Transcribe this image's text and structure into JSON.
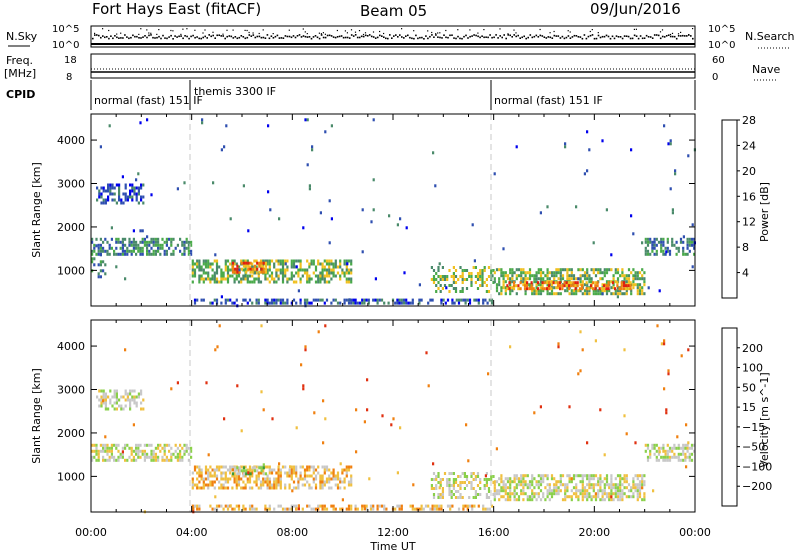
{
  "header": {
    "station": "Fort Hays East (fitACF)",
    "beam": "Beam 05",
    "date": "09/Jun/2016"
  },
  "strips": {
    "nsky_label": "N.Sky",
    "nsearch_label": "N.Search",
    "nsky_ticks": [
      "10^5",
      "10^0"
    ],
    "nsearch_ticks": [
      "10^5",
      "10^0"
    ],
    "freq_label_1": "Freq.",
    "freq_label_2": "[MHz]",
    "freq_ticks": [
      "18",
      "8"
    ],
    "nave_label": "Nave",
    "nave_ticks": [
      "60",
      "0"
    ],
    "cpid_label": "CPID",
    "cpid_segments": [
      {
        "label": "normal (fast) 151 IF",
        "start_h": 0,
        "end_h": 4
      },
      {
        "label": "themis 3300 IF",
        "start_h": 4,
        "end_h": 16
      },
      {
        "label": "normal (fast) 151 IF",
        "start_h": 16,
        "end_h": 24
      }
    ]
  },
  "chart_data": [
    {
      "type": "heatmap",
      "name": "power",
      "ylabel": "Slant Range [km]",
      "xlabel": "Time UT",
      "xlim": [
        0,
        24
      ],
      "ylim": [
        180,
        4600
      ],
      "yticks": [
        1000,
        2000,
        3000,
        4000
      ],
      "xtick_labels": [
        "00:00",
        "04:00",
        "08:00",
        "12:00",
        "16:00",
        "20:00",
        "00:00"
      ],
      "colorbar": {
        "label": "Power [dB]",
        "ticks": [
          "4",
          "8",
          "12",
          "16",
          "20",
          "24",
          "28"
        ],
        "colors": [
          "#0000ee",
          "#2f4fb0",
          "#4a8a6a",
          "#4aaa4a",
          "#f0c020",
          "#f08010",
          "#e02010"
        ]
      },
      "regions": [
        {
          "t0": 0.2,
          "t1": 2.1,
          "r0": 2500,
          "r1": 3000,
          "level": 1,
          "density": 0.5
        },
        {
          "t0": 0.0,
          "t1": 4.0,
          "r0": 1350,
          "r1": 1750,
          "level": 2,
          "density": 0.6
        },
        {
          "t0": 0.0,
          "t1": 0.6,
          "r0": 800,
          "r1": 1300,
          "level": 2,
          "density": 0.3
        },
        {
          "t0": 4.0,
          "t1": 10.4,
          "r0": 700,
          "r1": 1250,
          "level": 3,
          "density": 0.6
        },
        {
          "t0": 5.6,
          "t1": 7.0,
          "r0": 900,
          "r1": 1200,
          "level": 5,
          "density": 0.7
        },
        {
          "t0": 4.0,
          "t1": 16.0,
          "r0": 200,
          "r1": 350,
          "level": 1,
          "density": 0.55
        },
        {
          "t0": 13.5,
          "t1": 16.0,
          "r0": 450,
          "r1": 1100,
          "level": 3,
          "density": 0.4
        },
        {
          "t0": 16.0,
          "t1": 22.0,
          "r0": 450,
          "r1": 1050,
          "level": 3,
          "density": 0.6
        },
        {
          "t0": 16.5,
          "t1": 21.5,
          "r0": 520,
          "r1": 750,
          "level": 5,
          "density": 0.55
        },
        {
          "t0": 22.0,
          "t1": 24.0,
          "r0": 1350,
          "r1": 1750,
          "level": 2,
          "density": 0.6
        },
        {
          "t0": 0.0,
          "t1": 24.0,
          "r0": 180,
          "r1": 4500,
          "level": 1,
          "density": 0.006
        }
      ]
    },
    {
      "type": "heatmap",
      "name": "velocity",
      "ylabel": "Slant Range [km]",
      "xlabel": "Time UT",
      "xlim": [
        0,
        24
      ],
      "ylim": [
        180,
        4600
      ],
      "yticks": [
        1000,
        2000,
        3000,
        4000
      ],
      "xtick_labels": [
        "00:00",
        "04:00",
        "08:00",
        "12:00",
        "16:00",
        "20:00",
        "00:00"
      ],
      "colorbar": {
        "label": "Velocity [m s^-1]",
        "ticks": [
          "200",
          "100",
          "50",
          "15",
          "−15",
          "−50",
          "−100",
          "−200"
        ],
        "colors": [
          "#1b3fd0",
          "#3a7a8a",
          "#3a9a3a",
          "#8ad04a",
          "#c8c8c8",
          "#f0c040",
          "#f08010",
          "#e03010",
          "#e00000"
        ]
      },
      "regions": [
        {
          "t0": 0.2,
          "t1": 2.1,
          "r0": 2500,
          "r1": 3000,
          "level": 4,
          "density": 0.5
        },
        {
          "t0": 0.0,
          "t1": 4.0,
          "r0": 1350,
          "r1": 1750,
          "level": 4,
          "density": 0.6
        },
        {
          "t0": 4.0,
          "t1": 10.4,
          "r0": 700,
          "r1": 1250,
          "level": 5,
          "density": 0.55
        },
        {
          "t0": 5.6,
          "t1": 7.0,
          "r0": 1000,
          "r1": 1300,
          "level": 3,
          "density": 0.5
        },
        {
          "t0": 4.0,
          "t1": 16.0,
          "r0": 200,
          "r1": 350,
          "level": 5,
          "density": 0.55
        },
        {
          "t0": 13.5,
          "t1": 16.0,
          "r0": 450,
          "r1": 1100,
          "level": 4,
          "density": 0.45
        },
        {
          "t0": 16.0,
          "t1": 22.0,
          "r0": 450,
          "r1": 1050,
          "level": 4,
          "density": 0.6
        },
        {
          "t0": 22.0,
          "t1": 24.0,
          "r0": 1350,
          "r1": 1750,
          "level": 4,
          "density": 0.6
        },
        {
          "t0": 0.0,
          "t1": 24.0,
          "r0": 180,
          "r1": 4500,
          "level": 6,
          "density": 0.006
        }
      ]
    }
  ]
}
